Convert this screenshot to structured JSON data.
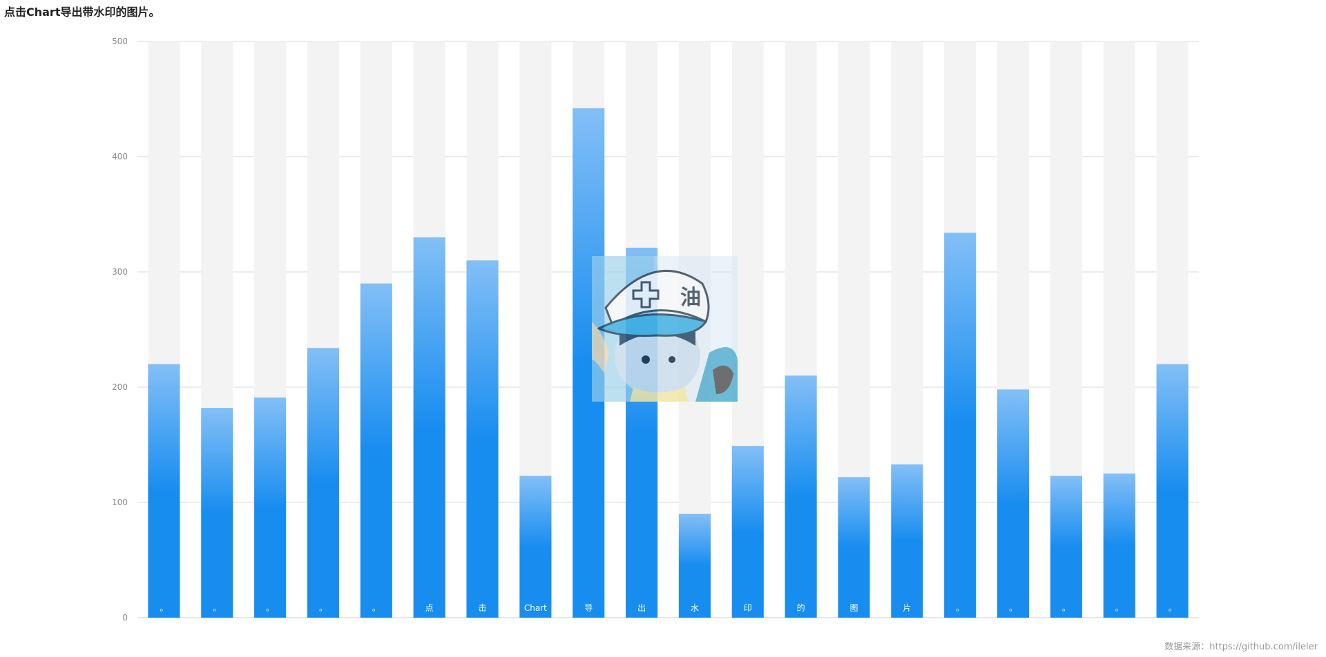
{
  "title": "点击Chart导出带水印的图片。",
  "source": "数据来源：https://github.com/ileler",
  "colors": {
    "bar_top": "#83bff6",
    "bar_mid": "#188df0",
    "bar_bottom": "#188df0",
    "shadow": "#f3f3f3",
    "grid": "#d9d9d9",
    "axis": "#cccccc"
  },
  "chart_data": {
    "type": "bar",
    "categories": [
      "。",
      "。",
      "。",
      "。",
      "。",
      "点",
      "击",
      "Chart",
      "导",
      "出",
      "水",
      "印",
      "的",
      "图",
      "片",
      "。",
      "。",
      "。",
      "。",
      "。"
    ],
    "values": [
      220,
      182,
      191,
      234,
      290,
      330,
      310,
      123,
      442,
      321,
      90,
      149,
      210,
      122,
      133,
      334,
      198,
      123,
      125,
      220
    ],
    "ylim": [
      0,
      500
    ],
    "yticks": [
      0,
      100,
      200,
      300,
      400,
      500
    ],
    "grid": true,
    "shadow_bars": true,
    "watermark": "cartoon-boy-avatar"
  }
}
